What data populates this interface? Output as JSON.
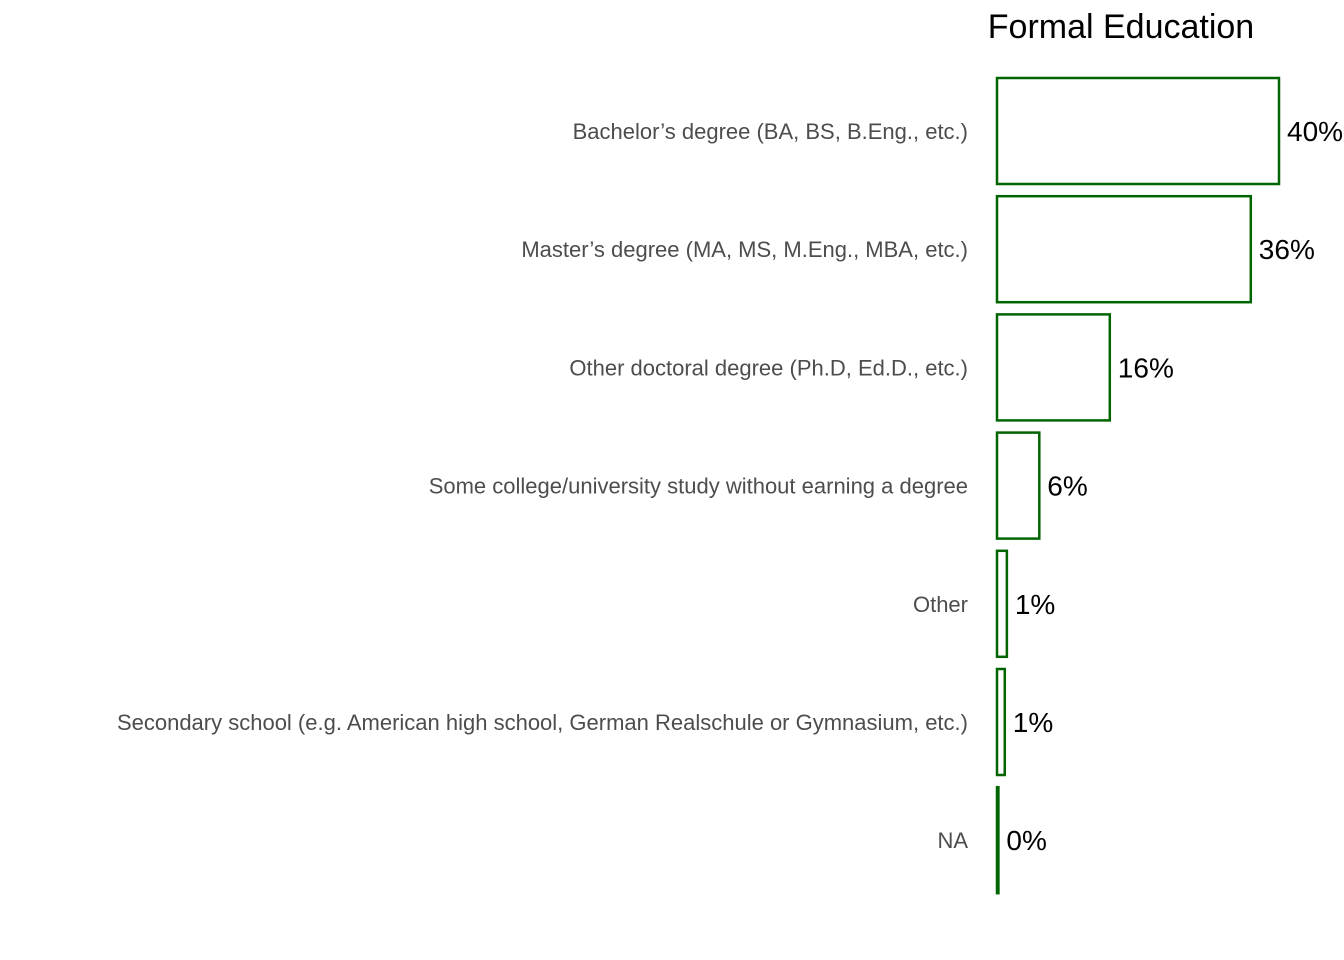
{
  "chart_data": {
    "type": "bar",
    "orientation": "horizontal",
    "title": "Formal Education",
    "xlabel": "",
    "ylabel": "",
    "categories": [
      "Bachelor’s degree (BA, BS, B.Eng., etc.)",
      "Master’s degree (MA, MS, M.Eng., MBA, etc.)",
      "Other doctoral degree (Ph.D, Ed.D., etc.)",
      "Some college/university study without earning a degree",
      "Other",
      "Secondary school (e.g. American high school, German Realschule or Gymnasium, etc.)",
      "NA"
    ],
    "values": [
      40,
      36,
      16,
      6,
      1.4,
      1.1,
      0.2
    ],
    "value_labels": [
      "40%",
      "36%",
      "16%",
      "6%",
      "1%",
      "1%",
      "0%"
    ],
    "value_unit": "%",
    "xlim": [
      0,
      40
    ],
    "grid": false,
    "legend": "none",
    "colors": {
      "bar_outline": "#006400",
      "bar_fill": "#ffffff"
    }
  }
}
